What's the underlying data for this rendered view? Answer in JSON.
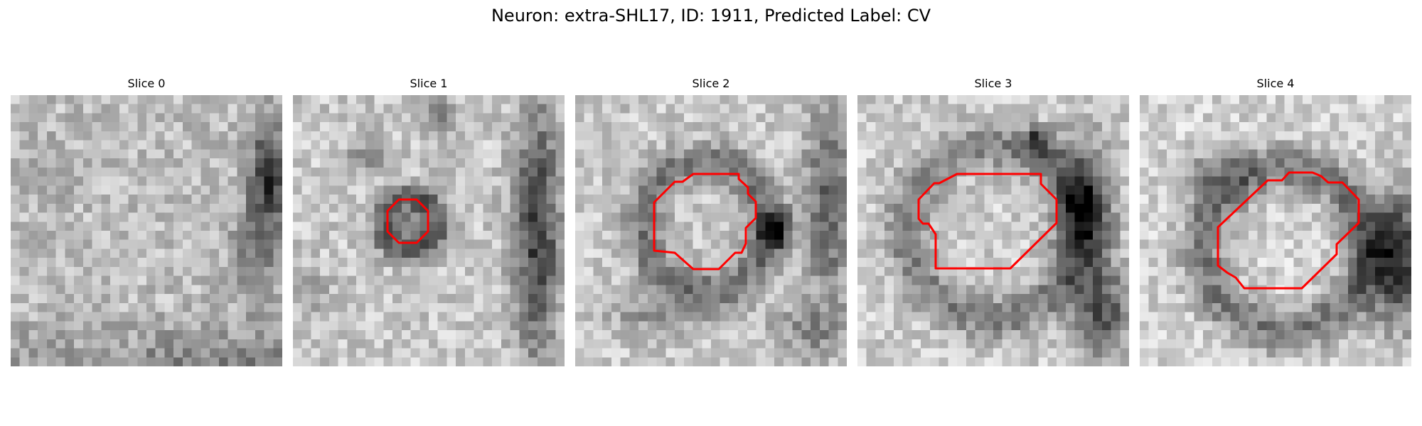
{
  "figure": {
    "title": "Neuron: extra-SHL17, ID: 1911, Predicted Label: CV"
  },
  "panels": [
    {
      "title": "Slice 0",
      "has_roi": false
    },
    {
      "title": "Slice 1",
      "has_roi": true
    },
    {
      "title": "Slice 2",
      "has_roi": true
    },
    {
      "title": "Slice 3",
      "has_roi": true
    },
    {
      "title": "Slice 4",
      "has_roi": true
    }
  ],
  "colors": {
    "roi_outline": "#ff0000",
    "background": "#ffffff"
  },
  "colormap": "gray"
}
